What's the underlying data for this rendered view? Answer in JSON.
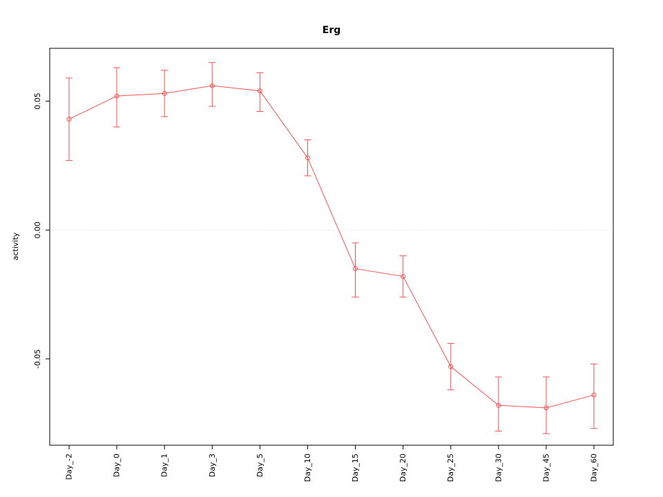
{
  "chart_data": {
    "type": "line",
    "title": "Erg",
    "ylabel": "activity",
    "xlabel": "",
    "categories": [
      "Day_-2",
      "Day_0",
      "Day_1",
      "Day_3",
      "Day_5",
      "Day_10",
      "Day_15",
      "Day_20",
      "Day_25",
      "Day_30",
      "Day_45",
      "Day_60"
    ],
    "series": [
      {
        "name": "activity",
        "values": [
          0.043,
          0.052,
          0.053,
          0.056,
          0.054,
          0.028,
          -0.015,
          -0.018,
          -0.053,
          -0.068,
          -0.069,
          -0.064
        ],
        "lower": [
          0.027,
          0.04,
          0.044,
          0.048,
          0.046,
          0.021,
          -0.026,
          -0.026,
          -0.062,
          -0.078,
          -0.079,
          -0.077
        ],
        "upper": [
          0.059,
          0.063,
          0.062,
          0.065,
          0.061,
          0.035,
          -0.005,
          -0.01,
          -0.044,
          -0.057,
          -0.057,
          -0.052
        ]
      }
    ],
    "yticks": [
      0.05,
      0,
      -0.05
    ],
    "ytick_labels": [
      "0.05",
      "0.00",
      "-0.05"
    ],
    "ylim": [
      -0.0835,
      0.0705
    ],
    "grid": {
      "y_zero_line": true,
      "style": "dotted",
      "color": "#dcdcdc"
    },
    "legend": "none",
    "marker": "open-circle",
    "series_color": "#f25252",
    "axis_color": "#000000"
  }
}
